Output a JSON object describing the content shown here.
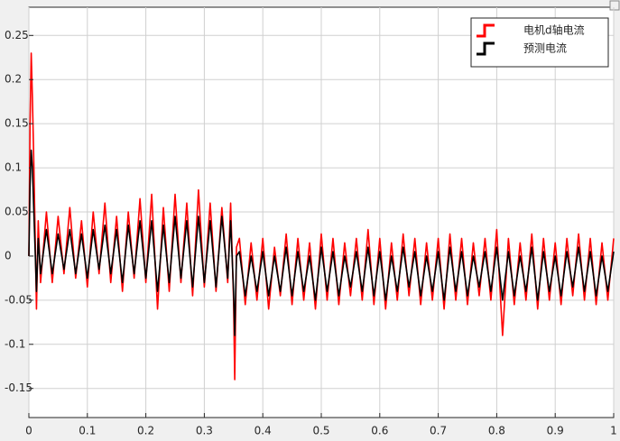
{
  "chart_data": {
    "type": "line",
    "x": [
      0,
      0.002,
      0.004,
      0.006,
      0.008,
      0.01,
      0.013,
      0.016,
      0.02,
      0.03,
      0.04,
      0.05,
      0.06,
      0.07,
      0.08,
      0.09,
      0.1,
      0.11,
      0.12,
      0.13,
      0.14,
      0.15,
      0.16,
      0.17,
      0.18,
      0.19,
      0.2,
      0.21,
      0.22,
      0.23,
      0.24,
      0.25,
      0.26,
      0.27,
      0.28,
      0.29,
      0.3,
      0.31,
      0.32,
      0.33,
      0.34,
      0.345,
      0.35,
      0.352,
      0.355,
      0.36,
      0.37,
      0.38,
      0.39,
      0.4,
      0.41,
      0.42,
      0.43,
      0.44,
      0.45,
      0.46,
      0.47,
      0.48,
      0.49,
      0.5,
      0.51,
      0.52,
      0.53,
      0.54,
      0.55,
      0.56,
      0.57,
      0.58,
      0.59,
      0.6,
      0.61,
      0.62,
      0.63,
      0.64,
      0.65,
      0.66,
      0.67,
      0.68,
      0.69,
      0.7,
      0.71,
      0.72,
      0.73,
      0.74,
      0.75,
      0.76,
      0.77,
      0.78,
      0.79,
      0.8,
      0.81,
      0.82,
      0.83,
      0.84,
      0.85,
      0.86,
      0.87,
      0.88,
      0.89,
      0.9,
      0.91,
      0.92,
      0.93,
      0.94,
      0.95,
      0.96,
      0.97,
      0.98,
      0.99,
      1.0
    ],
    "series": [
      {
        "name": "电机d轴电流",
        "color": "#ff0000",
        "values": [
          0,
          0.15,
          0.23,
          0.18,
          0.12,
          0.05,
          -0.06,
          0.04,
          -0.03,
          0.05,
          -0.03,
          0.045,
          -0.02,
          0.055,
          -0.025,
          0.04,
          -0.035,
          0.05,
          -0.02,
          0.06,
          -0.03,
          0.045,
          -0.04,
          0.05,
          -0.025,
          0.065,
          -0.03,
          0.07,
          -0.06,
          0.055,
          -0.04,
          0.07,
          -0.03,
          0.06,
          -0.045,
          0.075,
          -0.035,
          0.06,
          -0.04,
          0.055,
          -0.03,
          0.06,
          -0.05,
          -0.14,
          0.01,
          0.02,
          -0.055,
          0.015,
          -0.05,
          0.02,
          -0.06,
          0.01,
          -0.045,
          0.025,
          -0.055,
          0.02,
          -0.05,
          0.015,
          -0.06,
          0.025,
          -0.05,
          0.02,
          -0.055,
          0.015,
          -0.045,
          0.02,
          -0.05,
          0.03,
          -0.055,
          0.02,
          -0.06,
          0.015,
          -0.05,
          0.025,
          -0.045,
          0.02,
          -0.055,
          0.015,
          -0.05,
          0.02,
          -0.06,
          0.025,
          -0.05,
          0.02,
          -0.055,
          0.015,
          -0.045,
          0.02,
          -0.05,
          0.03,
          -0.09,
          0.02,
          -0.055,
          0.015,
          -0.05,
          0.025,
          -0.06,
          0.02,
          -0.05,
          0.015,
          -0.055,
          0.02,
          -0.045,
          0.025,
          -0.05,
          0.02,
          -0.055,
          0.015,
          -0.05,
          0.02
        ]
      },
      {
        "name": "预测电流",
        "color": "#000000",
        "values": [
          0,
          0.08,
          0.12,
          0.1,
          0.06,
          0.02,
          -0.04,
          0.02,
          -0.02,
          0.03,
          -0.02,
          0.025,
          -0.015,
          0.03,
          -0.02,
          0.025,
          -0.025,
          0.03,
          -0.015,
          0.035,
          -0.02,
          0.03,
          -0.03,
          0.035,
          -0.02,
          0.04,
          -0.025,
          0.04,
          -0.04,
          0.035,
          -0.03,
          0.045,
          -0.025,
          0.04,
          -0.035,
          0.045,
          -0.03,
          0.04,
          -0.035,
          0.045,
          -0.025,
          0.04,
          -0.04,
          -0.09,
          0,
          0.005,
          -0.045,
          0,
          -0.04,
          0.005,
          -0.045,
          0,
          -0.04,
          0.01,
          -0.045,
          0.005,
          -0.04,
          0,
          -0.05,
          0.01,
          -0.04,
          0.005,
          -0.045,
          0,
          -0.035,
          0.005,
          -0.04,
          0.01,
          -0.045,
          0.005,
          -0.05,
          0,
          -0.04,
          0.01,
          -0.035,
          0.005,
          -0.045,
          0,
          -0.04,
          0.005,
          -0.05,
          0.01,
          -0.04,
          0.005,
          -0.045,
          0,
          -0.035,
          0.005,
          -0.04,
          0.01,
          -0.05,
          0.005,
          -0.045,
          0,
          -0.04,
          0.01,
          -0.05,
          0.005,
          -0.04,
          0,
          -0.045,
          0.005,
          -0.035,
          0.01,
          -0.04,
          0.005,
          -0.045,
          0,
          -0.04,
          0.005
        ]
      }
    ],
    "xlim": [
      0,
      1
    ],
    "xticks": [
      0,
      0.1,
      0.2,
      0.3,
      0.4,
      0.5,
      0.6,
      0.7,
      0.8,
      0.9,
      1
    ],
    "ylim": [
      -0.183,
      0.282
    ],
    "yticks": [
      0.25,
      0.2,
      0.15,
      0.1,
      0.05,
      0,
      -0.05,
      -0.1,
      -0.15
    ],
    "grid": true,
    "legend": "upper right"
  }
}
